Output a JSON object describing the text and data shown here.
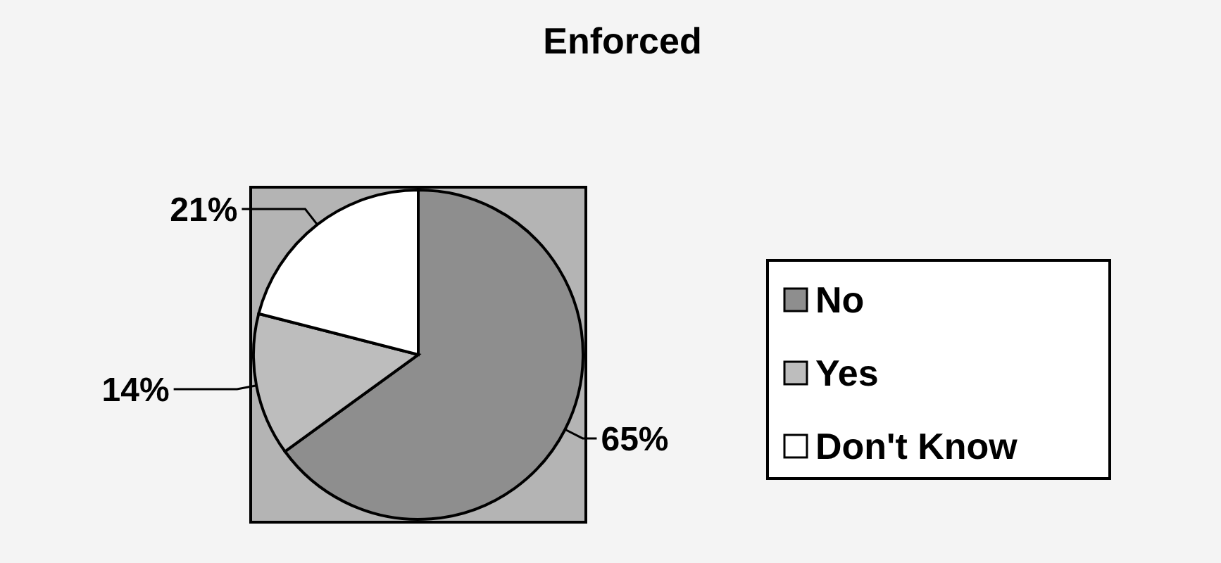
{
  "chart_data": {
    "type": "pie",
    "title": "Enforced",
    "categories": [
      "No",
      "Yes",
      "Don't Know"
    ],
    "values": [
      65,
      14,
      21
    ],
    "colors": [
      "#8e8e8e",
      "#bdbdbd",
      "#ffffff"
    ],
    "value_labels": [
      "65%",
      "14%",
      "21%"
    ],
    "legend": "right"
  }
}
